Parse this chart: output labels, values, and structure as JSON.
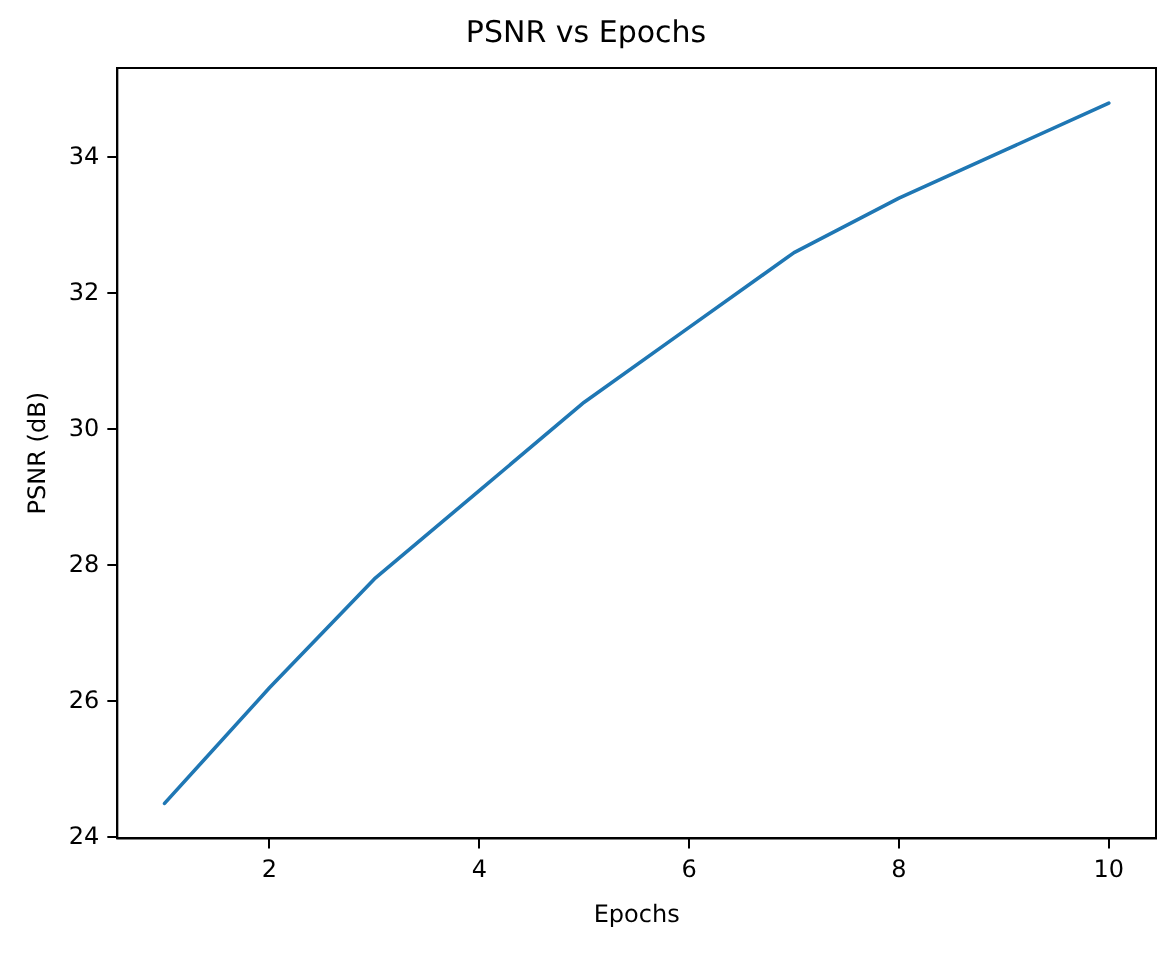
{
  "chart_data": {
    "type": "line",
    "title": "PSNR vs Epochs",
    "xlabel": "Epochs",
    "ylabel": "PSNR (dB)",
    "x": [
      1,
      2,
      3,
      4,
      5,
      6,
      7,
      8,
      9,
      10
    ],
    "series": [
      {
        "color": "#1f77b4",
        "values": [
          24.5,
          26.2,
          27.8,
          29.1,
          30.4,
          31.5,
          32.6,
          33.4,
          34.1,
          34.8
        ]
      }
    ],
    "xlim": [
      0.55,
      10.45
    ],
    "ylim": [
      23.985,
      35.315
    ],
    "xticks": [
      2,
      4,
      6,
      8,
      10
    ],
    "yticks": [
      24,
      26,
      28,
      30,
      32,
      34
    ],
    "grid": false,
    "legend": false,
    "marker": "none",
    "line_style": "solid"
  }
}
